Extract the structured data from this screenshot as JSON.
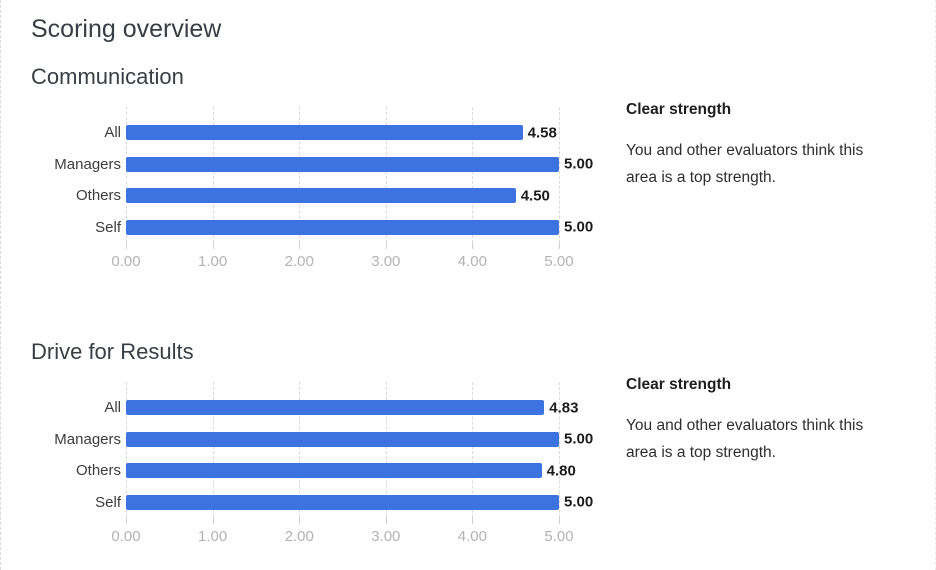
{
  "page": {
    "title": "Scoring overview"
  },
  "colors": {
    "bar": "#3d73e0",
    "value_label": "#1c1c1c",
    "axis_label": "#b3b3b3",
    "gridline": "#d9d9d9",
    "heading": "#393e44"
  },
  "chart_data": [
    {
      "type": "bar",
      "orientation": "horizontal",
      "title": "Communication",
      "categories": [
        "All",
        "Managers",
        "Others",
        "Self"
      ],
      "values": [
        4.58,
        5.0,
        4.5,
        5.0
      ],
      "value_labels": [
        "4.58",
        "5.00",
        "4.50",
        "5.00"
      ],
      "xlim": [
        0,
        5
      ],
      "x_ticks": [
        "0.00",
        "1.00",
        "2.00",
        "3.00",
        "4.00",
        "5.00"
      ],
      "grid": true,
      "legend": "none",
      "info": {
        "heading": "Clear strength",
        "body": "You and other evaluators think this area is a top strength."
      }
    },
    {
      "type": "bar",
      "orientation": "horizontal",
      "title": "Drive for Results",
      "categories": [
        "All",
        "Managers",
        "Others",
        "Self"
      ],
      "values": [
        4.83,
        5.0,
        4.8,
        5.0
      ],
      "value_labels": [
        "4.83",
        "5.00",
        "4.80",
        "5.00"
      ],
      "xlim": [
        0,
        5
      ],
      "x_ticks": [
        "0.00",
        "1.00",
        "2.00",
        "3.00",
        "4.00",
        "5.00"
      ],
      "grid": true,
      "legend": "none",
      "info": {
        "heading": "Clear strength",
        "body": "You and other evaluators think this area is a top strength."
      }
    }
  ]
}
